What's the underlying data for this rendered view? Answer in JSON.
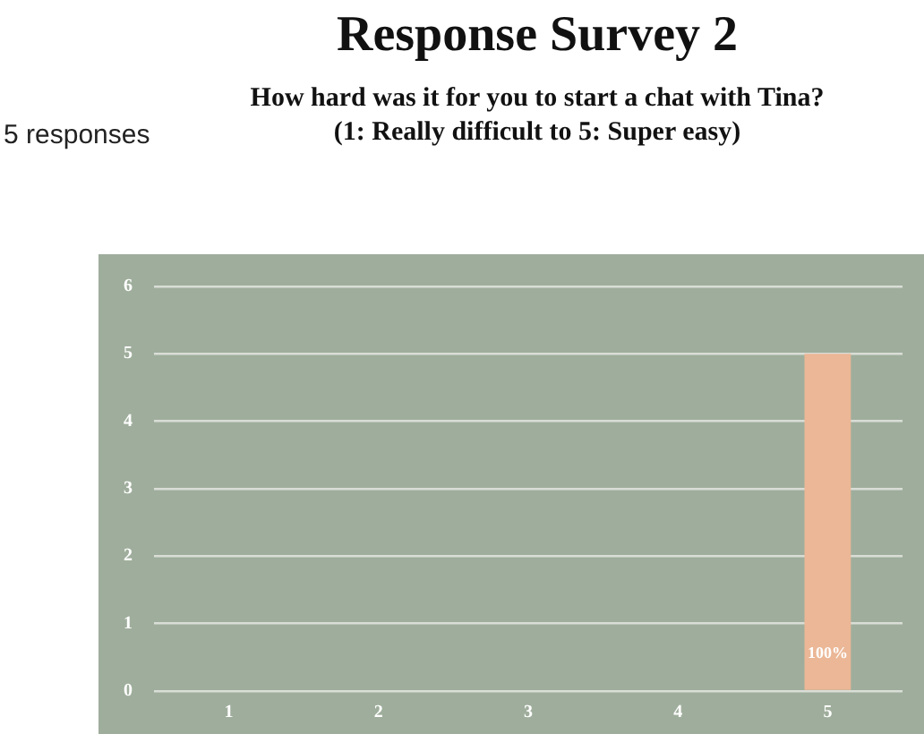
{
  "chart_data": {
    "type": "bar",
    "title": "Response Survey 2",
    "subtitle": "How hard was it for you to start a chat with Tina?\n(1: Really difficult to 5: Super easy)",
    "annotations": [
      "5 responses",
      "100%"
    ],
    "categories": [
      "1",
      "2",
      "3",
      "4",
      "5"
    ],
    "values": [
      0,
      0,
      0,
      0,
      5
    ],
    "color": "#ebb796",
    "ylim": [
      0,
      6
    ],
    "yticks": [
      0,
      1,
      2,
      3,
      4,
      5,
      6
    ],
    "grid": "y",
    "legend": false
  }
}
